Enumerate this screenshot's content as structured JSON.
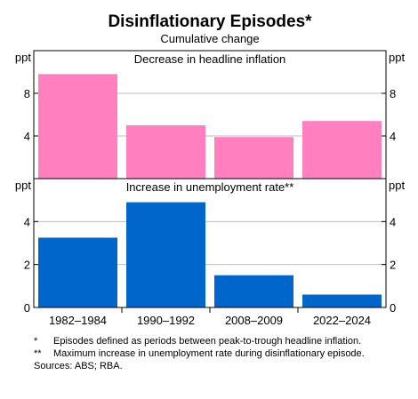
{
  "header": {
    "title": "Disinflationary Episodes*",
    "subtitle": "Cumulative change"
  },
  "chart_data": {
    "type": "bar",
    "categories": [
      "1982–1984",
      "1990–1992",
      "2008–2009",
      "2022–2024"
    ],
    "panels": [
      {
        "title": "Decrease in headline inflation",
        "unit": "ppt",
        "ylim": [
          0,
          12
        ],
        "yticks": [
          4,
          8
        ],
        "ytick_labels": [
          "4",
          "8"
        ],
        "color": "#FF7FBF",
        "values": [
          9.8,
          5.0,
          3.9,
          5.4
        ]
      },
      {
        "title": "Increase in unemployment rate**",
        "unit": "ppt",
        "ylim": [
          0,
          6
        ],
        "yticks": [
          0,
          2,
          4
        ],
        "ytick_labels": [
          "0",
          "2",
          "4"
        ],
        "color": "#0066CC",
        "values": [
          3.25,
          4.9,
          1.5,
          0.6
        ]
      }
    ],
    "grid": true
  },
  "notes": [
    {
      "mark": "*",
      "text": "Episodes defined as periods between peak-to-trough headline inflation."
    },
    {
      "mark": "**",
      "text": "Maximum increase in unemployment rate during disinflationary episode."
    },
    {
      "mark": "",
      "text": "Sources:  ABS; RBA."
    }
  ]
}
